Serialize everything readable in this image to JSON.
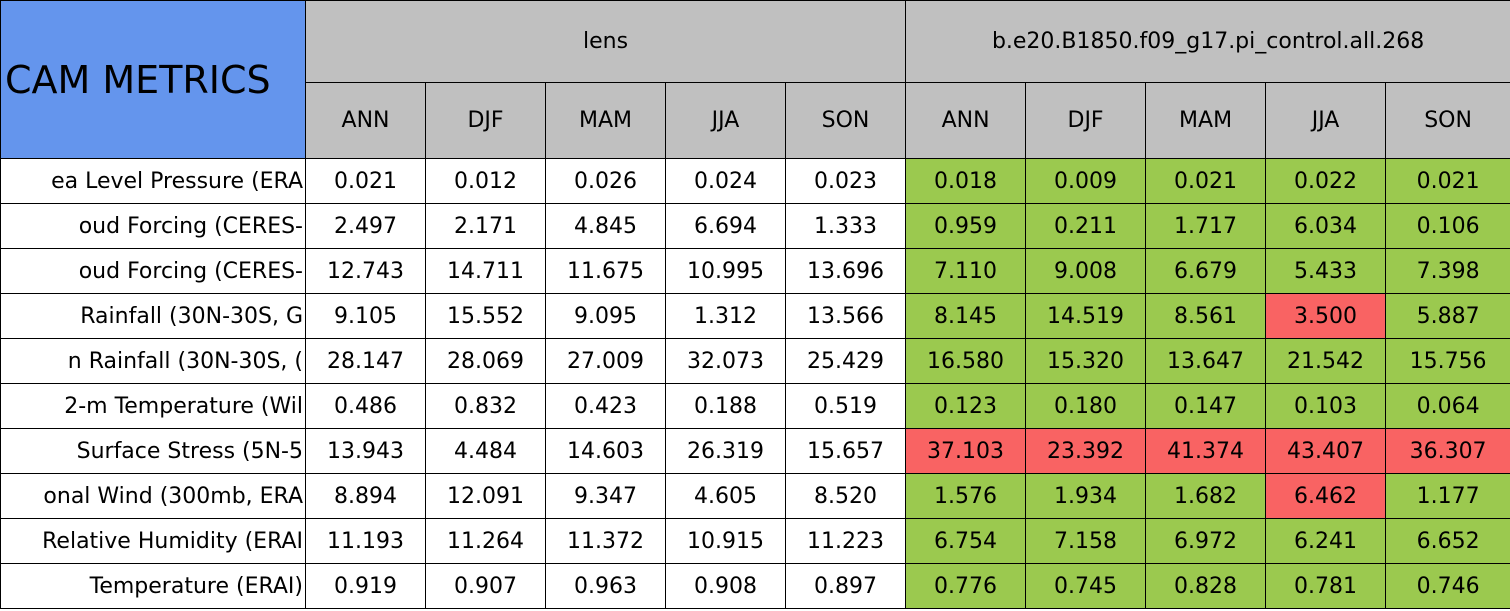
{
  "header": {
    "title": "CAM METRICS",
    "groups": [
      {
        "name": "lens",
        "seasons": [
          "ANN",
          "DJF",
          "MAM",
          "JJA",
          "SON"
        ]
      },
      {
        "name": "b.e20.B1850.f09_g17.pi_control.all.268",
        "seasons": [
          "ANN",
          "DJF",
          "MAM",
          "JJA",
          "SON"
        ]
      }
    ]
  },
  "rows": [
    {
      "label": "ea Level Pressure (ERA",
      "cells": [
        {
          "value": "0.021",
          "color": "#ffffff"
        },
        {
          "value": "0.012",
          "color": "#ffffff"
        },
        {
          "value": "0.026",
          "color": "#ffffff"
        },
        {
          "value": "0.024",
          "color": "#ffffff"
        },
        {
          "value": "0.023",
          "color": "#ffffff"
        },
        {
          "value": "0.018",
          "color": "#9bc94f"
        },
        {
          "value": "0.009",
          "color": "#9bc94f"
        },
        {
          "value": "0.021",
          "color": "#9bc94f"
        },
        {
          "value": "0.022",
          "color": "#9bc94f"
        },
        {
          "value": "0.021",
          "color": "#9bc94f"
        }
      ]
    },
    {
      "label": "oud Forcing (CERES-",
      "cells": [
        {
          "value": "2.497",
          "color": "#ffffff"
        },
        {
          "value": "2.171",
          "color": "#ffffff"
        },
        {
          "value": "4.845",
          "color": "#ffffff"
        },
        {
          "value": "6.694",
          "color": "#ffffff"
        },
        {
          "value": "1.333",
          "color": "#ffffff"
        },
        {
          "value": "0.959",
          "color": "#9bc94f"
        },
        {
          "value": "0.211",
          "color": "#9bc94f"
        },
        {
          "value": "1.717",
          "color": "#9bc94f"
        },
        {
          "value": "6.034",
          "color": "#9bc94f"
        },
        {
          "value": "0.106",
          "color": "#9bc94f"
        }
      ]
    },
    {
      "label": "oud Forcing (CERES-",
      "cells": [
        {
          "value": "12.743",
          "color": "#ffffff"
        },
        {
          "value": "14.711",
          "color": "#ffffff"
        },
        {
          "value": "11.675",
          "color": "#ffffff"
        },
        {
          "value": "10.995",
          "color": "#ffffff"
        },
        {
          "value": "13.696",
          "color": "#ffffff"
        },
        {
          "value": "7.110",
          "color": "#9bc94f"
        },
        {
          "value": "9.008",
          "color": "#9bc94f"
        },
        {
          "value": "6.679",
          "color": "#9bc94f"
        },
        {
          "value": "5.433",
          "color": "#9bc94f"
        },
        {
          "value": "7.398",
          "color": "#9bc94f"
        }
      ]
    },
    {
      "label": "Rainfall (30N-30S, G",
      "cells": [
        {
          "value": "9.105",
          "color": "#ffffff"
        },
        {
          "value": "15.552",
          "color": "#ffffff"
        },
        {
          "value": "9.095",
          "color": "#ffffff"
        },
        {
          "value": "1.312",
          "color": "#ffffff"
        },
        {
          "value": "13.566",
          "color": "#ffffff"
        },
        {
          "value": "8.145",
          "color": "#9bc94f"
        },
        {
          "value": "14.519",
          "color": "#9bc94f"
        },
        {
          "value": "8.561",
          "color": "#9bc94f"
        },
        {
          "value": "3.500",
          "color": "#f96363"
        },
        {
          "value": "5.887",
          "color": "#9bc94f"
        }
      ]
    },
    {
      "label": "n Rainfall (30N-30S, (",
      "cells": [
        {
          "value": "28.147",
          "color": "#ffffff"
        },
        {
          "value": "28.069",
          "color": "#ffffff"
        },
        {
          "value": "27.009",
          "color": "#ffffff"
        },
        {
          "value": "32.073",
          "color": "#ffffff"
        },
        {
          "value": "25.429",
          "color": "#ffffff"
        },
        {
          "value": "16.580",
          "color": "#9bc94f"
        },
        {
          "value": "15.320",
          "color": "#9bc94f"
        },
        {
          "value": "13.647",
          "color": "#9bc94f"
        },
        {
          "value": "21.542",
          "color": "#9bc94f"
        },
        {
          "value": "15.756",
          "color": "#9bc94f"
        }
      ]
    },
    {
      "label": "2-m Temperature (Wil",
      "cells": [
        {
          "value": "0.486",
          "color": "#ffffff"
        },
        {
          "value": "0.832",
          "color": "#ffffff"
        },
        {
          "value": "0.423",
          "color": "#ffffff"
        },
        {
          "value": "0.188",
          "color": "#ffffff"
        },
        {
          "value": "0.519",
          "color": "#ffffff"
        },
        {
          "value": "0.123",
          "color": "#9bc94f"
        },
        {
          "value": "0.180",
          "color": "#9bc94f"
        },
        {
          "value": "0.147",
          "color": "#9bc94f"
        },
        {
          "value": "0.103",
          "color": "#9bc94f"
        },
        {
          "value": "0.064",
          "color": "#9bc94f"
        }
      ]
    },
    {
      "label": "Surface Stress (5N-5",
      "cells": [
        {
          "value": "13.943",
          "color": "#ffffff"
        },
        {
          "value": "4.484",
          "color": "#ffffff"
        },
        {
          "value": "14.603",
          "color": "#ffffff"
        },
        {
          "value": "26.319",
          "color": "#ffffff"
        },
        {
          "value": "15.657",
          "color": "#ffffff"
        },
        {
          "value": "37.103",
          "color": "#f96363"
        },
        {
          "value": "23.392",
          "color": "#f96363"
        },
        {
          "value": "41.374",
          "color": "#f96363"
        },
        {
          "value": "43.407",
          "color": "#f96363"
        },
        {
          "value": "36.307",
          "color": "#f96363"
        }
      ]
    },
    {
      "label": "onal Wind (300mb, ERA",
      "cells": [
        {
          "value": "8.894",
          "color": "#ffffff"
        },
        {
          "value": "12.091",
          "color": "#ffffff"
        },
        {
          "value": "9.347",
          "color": "#ffffff"
        },
        {
          "value": "4.605",
          "color": "#ffffff"
        },
        {
          "value": "8.520",
          "color": "#ffffff"
        },
        {
          "value": "1.576",
          "color": "#9bc94f"
        },
        {
          "value": "1.934",
          "color": "#9bc94f"
        },
        {
          "value": "1.682",
          "color": "#9bc94f"
        },
        {
          "value": "6.462",
          "color": "#f96363"
        },
        {
          "value": "1.177",
          "color": "#9bc94f"
        }
      ]
    },
    {
      "label": "Relative Humidity (ERAI",
      "cells": [
        {
          "value": "11.193",
          "color": "#ffffff"
        },
        {
          "value": "11.264",
          "color": "#ffffff"
        },
        {
          "value": "11.372",
          "color": "#ffffff"
        },
        {
          "value": "10.915",
          "color": "#ffffff"
        },
        {
          "value": "11.223",
          "color": "#ffffff"
        },
        {
          "value": "6.754",
          "color": "#9bc94f"
        },
        {
          "value": "7.158",
          "color": "#9bc94f"
        },
        {
          "value": "6.972",
          "color": "#9bc94f"
        },
        {
          "value": "6.241",
          "color": "#9bc94f"
        },
        {
          "value": "6.652",
          "color": "#9bc94f"
        }
      ]
    },
    {
      "label": "Temperature (ERAI)",
      "cells": [
        {
          "value": "0.919",
          "color": "#ffffff"
        },
        {
          "value": "0.907",
          "color": "#ffffff"
        },
        {
          "value": "0.963",
          "color": "#ffffff"
        },
        {
          "value": "0.908",
          "color": "#ffffff"
        },
        {
          "value": "0.897",
          "color": "#ffffff"
        },
        {
          "value": "0.776",
          "color": "#9bc94f"
        },
        {
          "value": "0.745",
          "color": "#9bc94f"
        },
        {
          "value": "0.828",
          "color": "#9bc94f"
        },
        {
          "value": "0.781",
          "color": "#9bc94f"
        },
        {
          "value": "0.746",
          "color": "#9bc94f"
        }
      ]
    }
  ]
}
